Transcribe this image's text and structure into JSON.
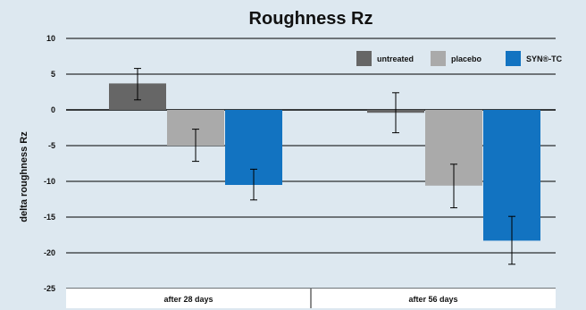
{
  "chart_data": {
    "type": "bar",
    "title": "Roughness Rz",
    "xlabel": "",
    "ylabel": "delta roughness Rz",
    "ylim": [
      -25,
      10
    ],
    "yticks": [
      10,
      5,
      0,
      -5,
      -10,
      -15,
      -20,
      -25
    ],
    "categories": [
      "after 28 days",
      "after 56 days"
    ],
    "grid": true,
    "legend_position": "top-right",
    "series": [
      {
        "name": "untreated",
        "color": "#666666",
        "values": [
          3.7,
          -0.4
        ],
        "error_low": [
          1.4,
          -3.2
        ],
        "error_high": [
          5.8,
          2.4
        ]
      },
      {
        "name": "placebo",
        "color": "#aaaaaa",
        "values": [
          -5.0,
          -10.6
        ],
        "error_low": [
          -7.2,
          -13.7
        ],
        "error_high": [
          -2.7,
          -7.6
        ]
      },
      {
        "name": "SYN®-TC",
        "color": "#1273c1",
        "values": [
          -10.5,
          -18.3
        ],
        "error_low": [
          -12.6,
          -21.6
        ],
        "error_high": [
          -8.3,
          -14.9
        ]
      }
    ]
  }
}
